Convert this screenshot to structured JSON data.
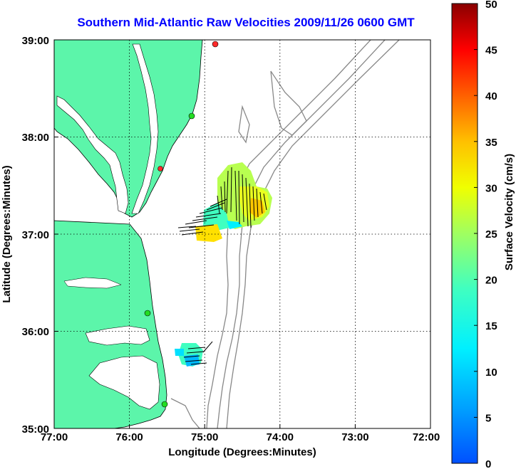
{
  "map": {
    "title": "Southern Mid-Atlantic Raw Velocities 2009/11/26 0600 GMT",
    "xlabel": "Longitude (Degrees:Minutes)",
    "ylabel": "Latitude (Degrees:Minutes)",
    "xticks": [
      "77:00",
      "76:00",
      "75:00",
      "74:00",
      "73:00",
      "72:00"
    ],
    "yticks": [
      "39:00",
      "38:00",
      "37:00",
      "36:00",
      "35:00"
    ],
    "land_color": "#5cf5aa",
    "grid": "dotted"
  },
  "colorbar": {
    "label": "Surface Velocity (cm/s)",
    "ticks": [
      "50",
      "45",
      "40",
      "35",
      "30",
      "25",
      "20",
      "15",
      "10",
      "5",
      "0"
    ],
    "range": [
      0,
      50
    ],
    "colormap": "jet"
  },
  "stations": [
    {
      "status": "red",
      "color": "#ff2a2a"
    },
    {
      "status": "green",
      "color": "#22dd22"
    },
    {
      "status": "red",
      "color": "#ff2a2a"
    },
    {
      "status": "green",
      "color": "#22dd22"
    },
    {
      "status": "green",
      "color": "#22dd22"
    }
  ]
}
